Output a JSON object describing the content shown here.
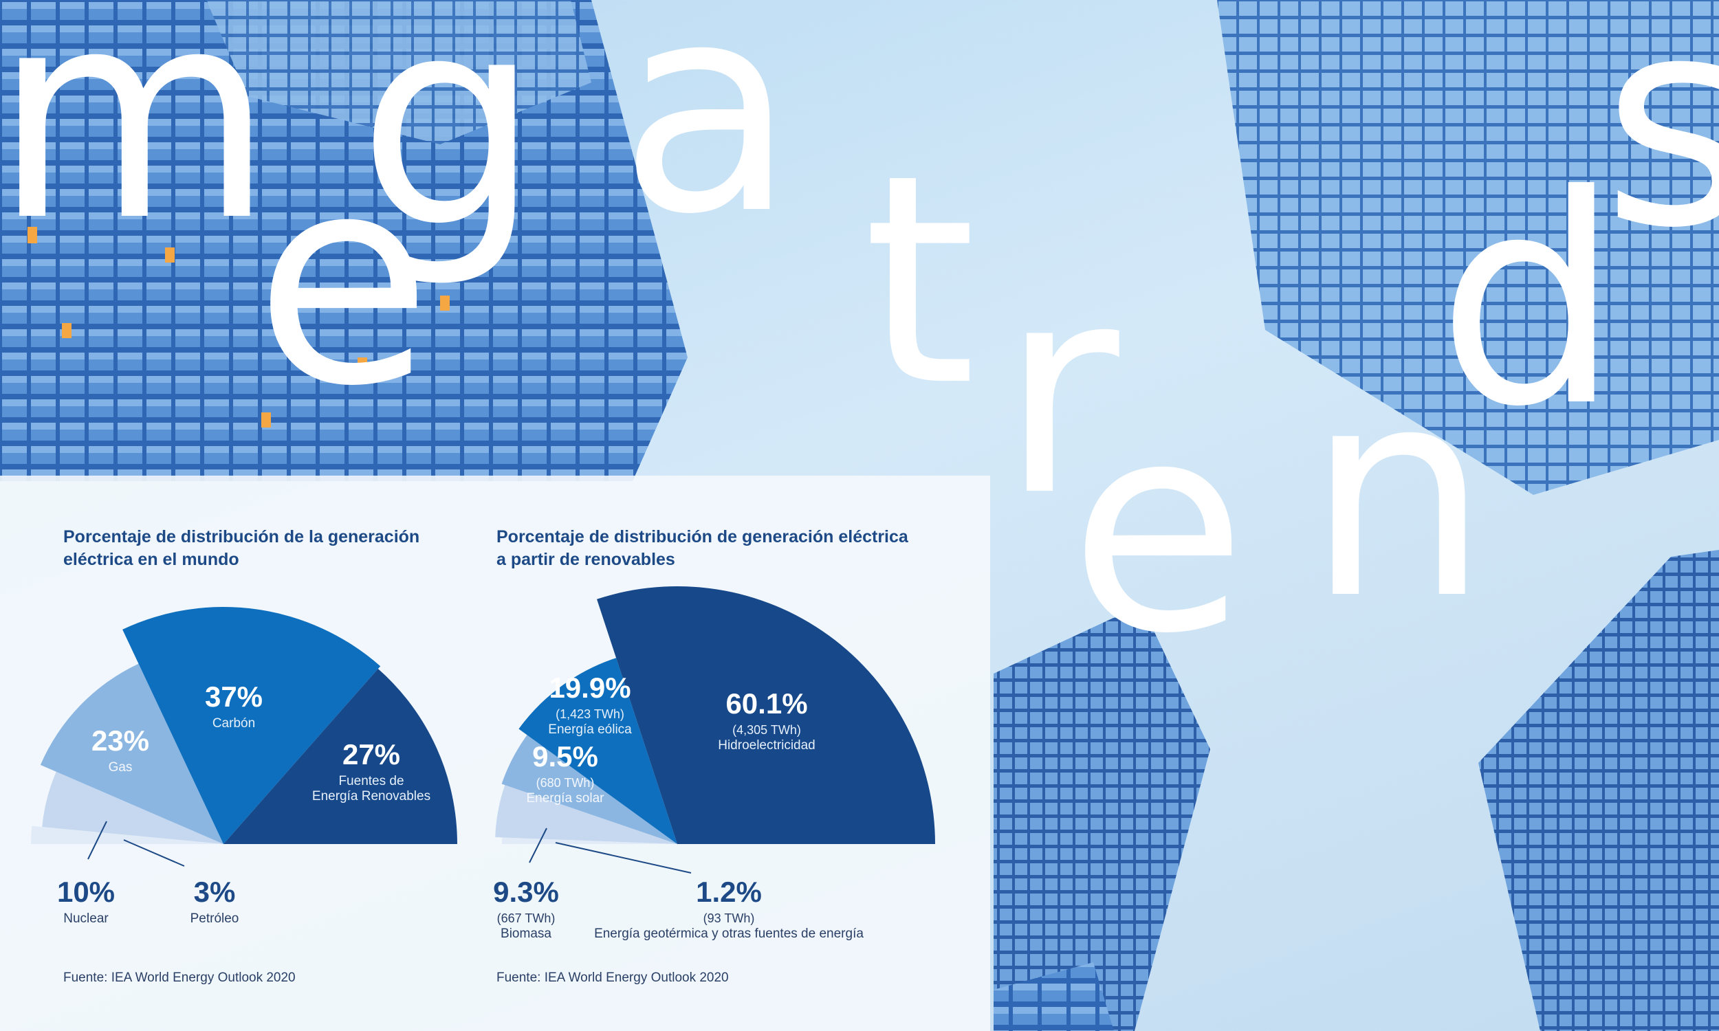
{
  "headline": {
    "letters": [
      "m",
      "e",
      "g",
      "a",
      "t",
      "r",
      "e",
      "n",
      "d",
      "s"
    ]
  },
  "charts": {
    "left": {
      "title": "Porcentaje de distribución de la generación eléctrica en el mundo",
      "source": "Fuente: IEA World Energy Outlook 2020"
    },
    "right": {
      "title": "Porcentaje de distribución de generación eléctrica a partir de renovables",
      "source": "Fuente: IEA World Energy Outlook 2020"
    }
  },
  "chart_data": [
    {
      "type": "pie",
      "title": "Porcentaje de distribución de la generación eléctrica en el mundo",
      "slices": [
        {
          "label": "Petróleo",
          "value": 3,
          "display": "3%",
          "color": "#e1ebf7"
        },
        {
          "label": "Nuclear",
          "value": 10,
          "display": "10%",
          "color": "#c5d8ef"
        },
        {
          "label": "Gas",
          "value": 23,
          "display": "23%",
          "color": "#8cb6e2"
        },
        {
          "label": "Carbón",
          "value": 37,
          "display": "37%",
          "color": "#0d6fbd"
        },
        {
          "label": "Fuentes de Energía Renovables",
          "value": 27,
          "display": "27%",
          "color": "#17488a"
        }
      ],
      "source": "Fuente: IEA World Energy Outlook 2020"
    },
    {
      "type": "pie",
      "title": "Porcentaje de distribución de generación eléctrica a partir de renovables",
      "slices": [
        {
          "label": "Energía geotérmica y otras fuentes de energía",
          "value": 1.2,
          "display": "1.2%",
          "sub": "(93 TWh)",
          "color": "#e1ebf7"
        },
        {
          "label": "Biomasa",
          "value": 9.3,
          "display": "9.3%",
          "sub": "(667 TWh)",
          "color": "#c5d8ef"
        },
        {
          "label": "Energía solar",
          "value": 9.5,
          "display": "9.5%",
          "sub": "(680 TWh)",
          "color": "#8cb6e2"
        },
        {
          "label": "Energía eólica",
          "value": 19.9,
          "display": "19.9%",
          "sub": "(1,423 TWh)",
          "color": "#0d6fbd"
        },
        {
          "label": "Hidroelectricidad",
          "value": 60.1,
          "display": "60.1%",
          "sub": "(4,305 TWh)",
          "color": "#17488a"
        }
      ],
      "source": "Fuente: IEA World Energy Outlook 2020"
    }
  ]
}
